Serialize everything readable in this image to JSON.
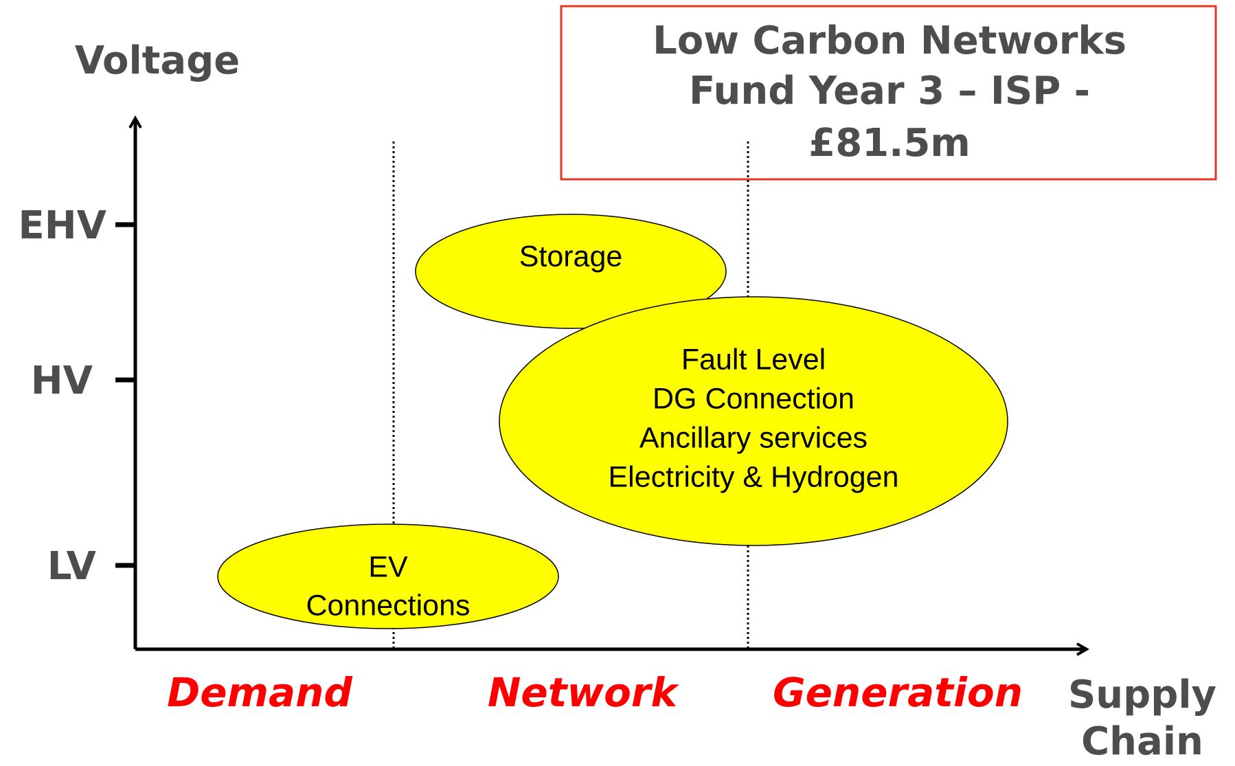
{
  "title": {
    "lines": [
      "Low Carbon Networks",
      "Fund Year 3 – ISP -",
      "£81.5m"
    ]
  },
  "y_axis": {
    "label": "Voltage",
    "levels": [
      "EHV",
      "HV",
      "LV"
    ]
  },
  "x_axis": {
    "label": [
      "Supply",
      "Chain"
    ],
    "sections": [
      "Demand",
      "Network",
      "Generation"
    ]
  },
  "nodes": [
    {
      "lines": [
        "Storage"
      ]
    },
    {
      "lines": [
        "Fault Level",
        "DG Connection",
        "Ancillary services",
        "Electricity & Hydrogen"
      ]
    },
    {
      "lines": [
        "EV",
        "Connections"
      ]
    }
  ]
}
